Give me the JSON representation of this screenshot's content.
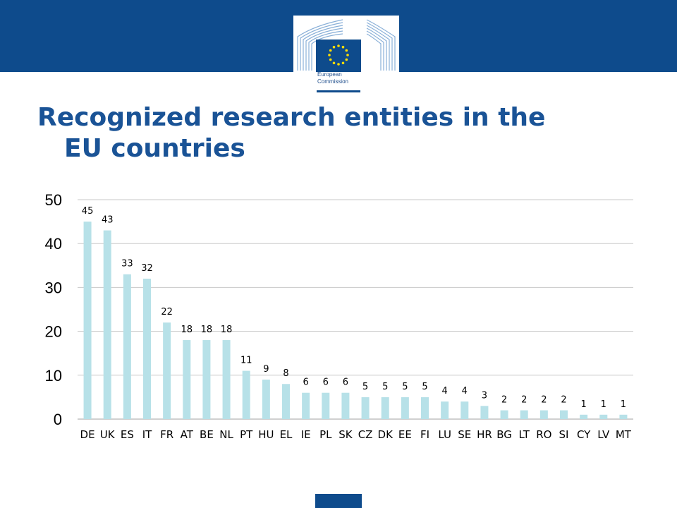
{
  "slide": {
    "title_line1": "Recognized research entities in the",
    "title_line2": "EU countries",
    "logo_line1": "European",
    "logo_line2": "Commission",
    "colors": {
      "band": "#0e4b8c",
      "title": "#1a5396",
      "bar": "#b7e1e8",
      "grid": "#c8c8c8",
      "axis_text": "#000000",
      "logo_star": "#ffdd00"
    },
    "icons": [
      "eu-flag-icon",
      "berlaymont-building-icon"
    ]
  },
  "chart_data": {
    "type": "bar",
    "title": "",
    "xlabel": "",
    "ylabel": "",
    "ylim": [
      0,
      50
    ],
    "yticks": [
      0,
      10,
      20,
      30,
      40,
      50
    ],
    "grid": true,
    "legend": "none",
    "categories": [
      "DE",
      "UK",
      "ES",
      "IT",
      "FR",
      "AT",
      "BE",
      "NL",
      "PT",
      "HU",
      "EL",
      "IE",
      "PL",
      "SK",
      "CZ",
      "DK",
      "EE",
      "FI",
      "LU",
      "SE",
      "HR",
      "BG",
      "LT",
      "RO",
      "SI",
      "CY",
      "LV",
      "MT"
    ],
    "values": [
      45,
      43,
      33,
      32,
      22,
      18,
      18,
      18,
      11,
      9,
      8,
      6,
      6,
      6,
      5,
      5,
      5,
      5,
      4,
      4,
      3,
      2,
      2,
      2,
      2,
      1,
      1,
      1
    ]
  }
}
